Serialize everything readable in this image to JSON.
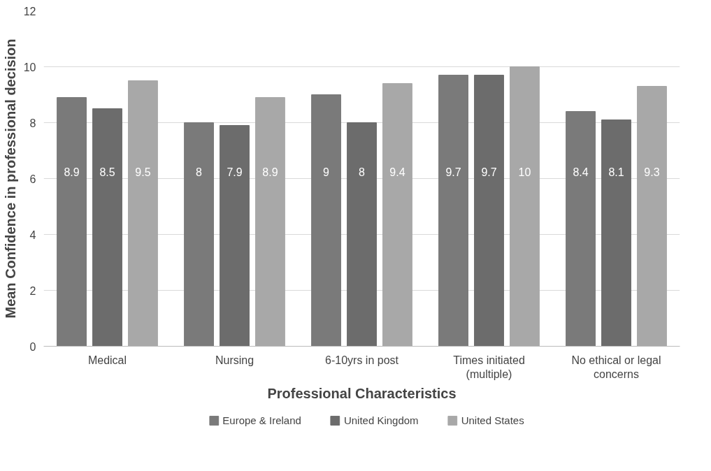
{
  "chart_data": {
    "type": "bar",
    "categories": [
      "Medical",
      "Nursing",
      "6-10yrs in post",
      "Times initiated (multiple)",
      "No ethical or legal concerns"
    ],
    "xlabel": "Professional Characteristics",
    "ylabel": "Mean Confidence in professional decision",
    "series": [
      {
        "name": "Europe & Ireland",
        "color": "#7a7a7a",
        "values": [
          8.9,
          8,
          9,
          9.7,
          8.4
        ]
      },
      {
        "name": "United Kingdom",
        "color": "#6c6c6c",
        "values": [
          8.5,
          7.9,
          8,
          9.7,
          8.1
        ]
      },
      {
        "name": "United States",
        "color": "#a8a8a8",
        "values": [
          9.5,
          8.9,
          9.4,
          10,
          9.3
        ]
      }
    ],
    "ylim": [
      0,
      12
    ],
    "yticks": [
      0,
      2,
      4,
      6,
      8,
      10,
      12
    ],
    "grid": "y",
    "legend": "bottom",
    "data_labels": true
  }
}
